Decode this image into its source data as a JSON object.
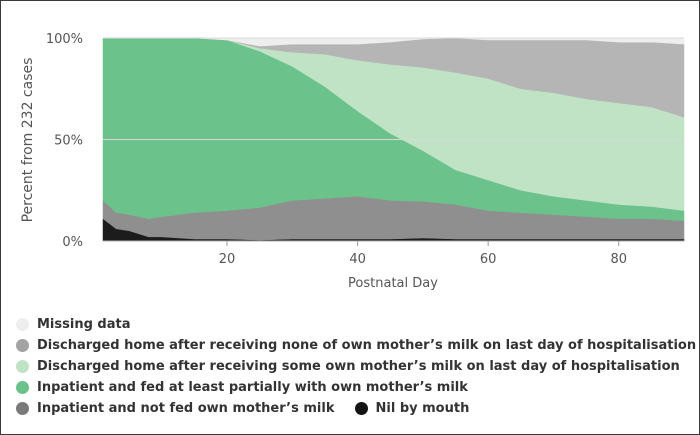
{
  "chart_data": {
    "type": "area",
    "stacking": "percent",
    "ylabel": "Percent from 232 cases",
    "xlabel": "Postnatal Day",
    "xlim": [
      1,
      90
    ],
    "ylim": [
      0,
      100
    ],
    "x_ticks": [
      20,
      40,
      60,
      80
    ],
    "x_tick_labels": [
      "20",
      "40",
      "60",
      "80"
    ],
    "y_ticks": [
      0,
      50,
      100
    ],
    "y_tick_labels": [
      "0%",
      "50%",
      "100%"
    ],
    "legend_position": "bottom",
    "x": [
      1,
      3,
      5,
      8,
      10,
      15,
      20,
      25,
      30,
      35,
      40,
      45,
      50,
      55,
      60,
      65,
      70,
      75,
      80,
      85,
      90
    ],
    "series": [
      {
        "name": "Nil by mouth",
        "color": "#1c1c1c",
        "values": [
          11,
          6,
          5,
          2,
          2,
          1,
          1,
          0.5,
          1,
          1,
          1,
          1,
          1.5,
          1,
          1,
          1,
          1,
          1,
          1,
          1,
          1
        ]
      },
      {
        "name": "Inpatient and not fed own mother’s milk",
        "color": "#8f8f8f",
        "values": [
          9,
          8,
          8,
          9,
          10,
          13,
          14,
          16,
          19,
          20,
          21,
          19,
          18,
          17,
          14,
          13,
          12,
          11,
          10,
          10,
          9
        ]
      },
      {
        "name": "Inpatient and fed at least partially with own mother’s milk",
        "color": "#6cc28b",
        "values": [
          80,
          86,
          87,
          89,
          88,
          86,
          84,
          77,
          66,
          55,
          42,
          33,
          25,
          17,
          15,
          11,
          9,
          8,
          7,
          6,
          5
        ]
      },
      {
        "name": "Discharged home after receiving some own mother’s milk on last day of hospitalisation",
        "color": "#bfe3c4",
        "values": [
          0,
          0,
          0,
          0,
          0,
          0,
          0,
          1.5,
          7,
          16,
          25,
          34,
          41,
          48,
          50,
          50,
          51,
          50,
          50,
          49,
          46
        ]
      },
      {
        "name": "Discharged home after receiving none of own mother’s milk on last day of hospitalisation",
        "color": "#b5b5b5",
        "values": [
          0,
          0,
          0,
          0,
          0,
          0,
          0,
          1,
          4,
          5,
          8,
          11,
          14,
          17,
          19,
          24,
          26,
          29,
          30,
          32,
          36
        ]
      },
      {
        "name": "Missing data",
        "color": "#eeeeee",
        "values": [
          0,
          0,
          0,
          0,
          0,
          0,
          1,
          4,
          3,
          3,
          3,
          2,
          0.5,
          0,
          1,
          1,
          1,
          1,
          2,
          2,
          3
        ]
      }
    ]
  },
  "legend": {
    "rows": [
      [
        {
          "label": "Missing data",
          "color": "#eeeeee"
        }
      ],
      [
        {
          "label": "Discharged home after receiving none of own mother’s milk on last day of hospitalisation",
          "color": "#a3a3a3"
        }
      ],
      [
        {
          "label": "Discharged home after receiving some own mother’s milk on last day of hospitalisation",
          "color": "#bfe3c4"
        }
      ],
      [
        {
          "label": "Inpatient and fed at least partially with own mother’s milk",
          "color": "#6cc28b"
        }
      ],
      [
        {
          "label": "Inpatient and not fed own mother’s milk",
          "color": "#7a7a7a"
        },
        {
          "label": "Nil by mouth",
          "color": "#141414"
        }
      ]
    ]
  }
}
